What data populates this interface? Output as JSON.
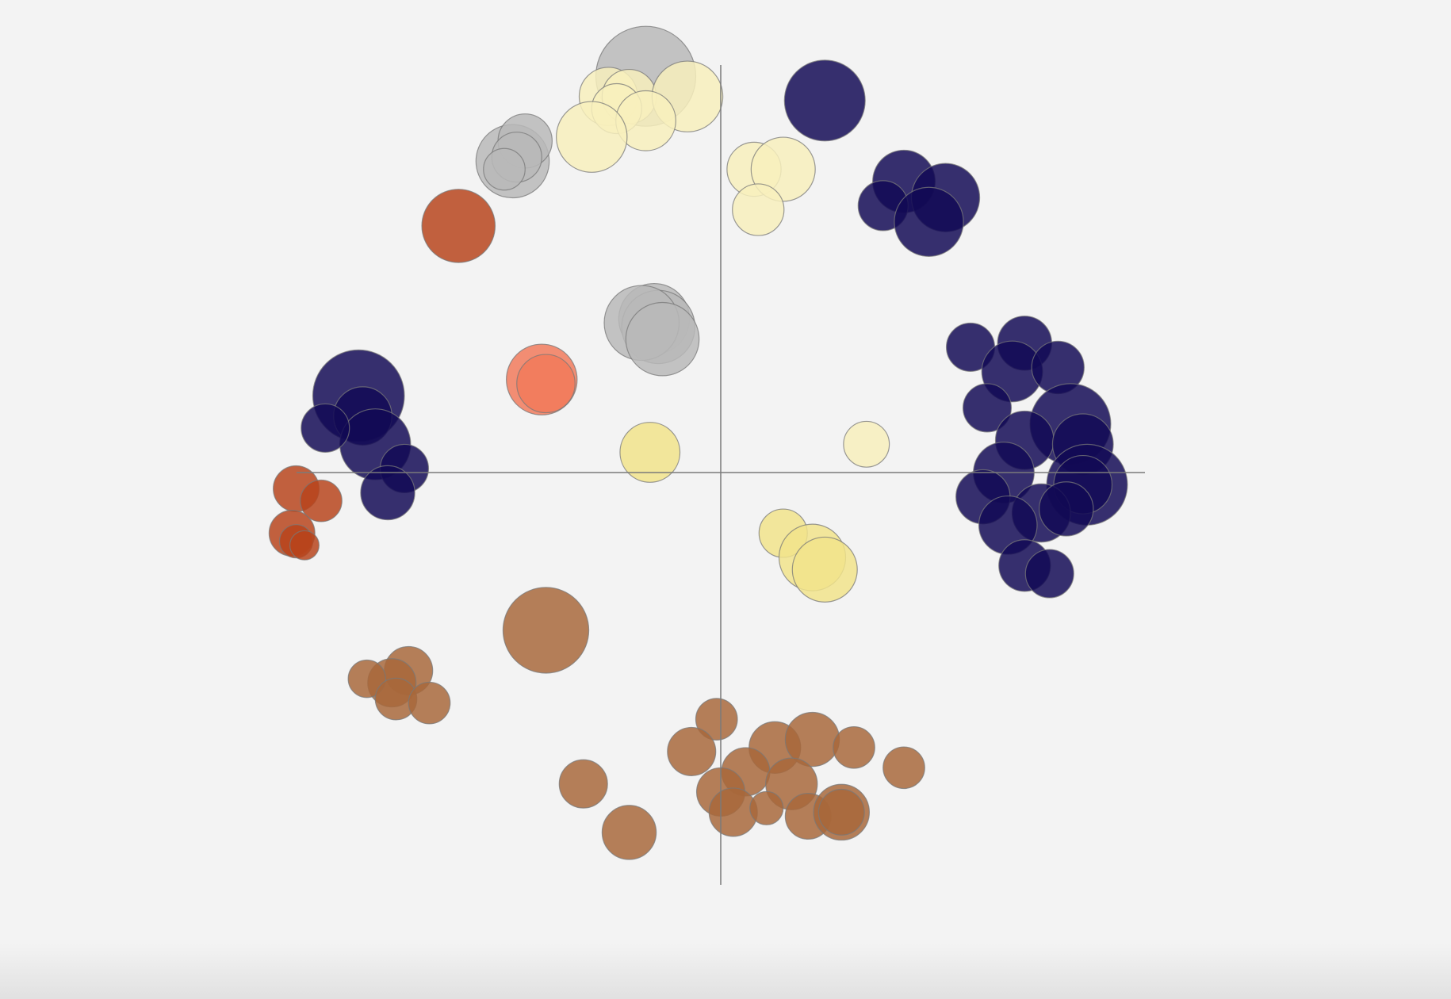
{
  "chart_data": {
    "type": "scatter",
    "subtype": "bubble",
    "title": "",
    "xlabel": "",
    "ylabel": "",
    "x_range": [
      -1,
      1
    ],
    "y_range": [
      -1,
      1
    ],
    "origin_axes": true,
    "grid": false,
    "tick_labels": "none",
    "colors": {
      "navy": "#120a55",
      "cream": "#f8f0bc",
      "yellow": "#f2e38a",
      "gray": "#b9b9b9",
      "rust": "#b8441c",
      "coral": "#f27a5a",
      "brown": "#a8683a"
    },
    "groups": [
      {
        "color": "gray",
        "points": [
          {
            "x": -0.18,
            "y": 0.98,
            "r": 0.12
          },
          {
            "x": -0.16,
            "y": 0.38,
            "r": 0.085
          },
          {
            "x": -0.15,
            "y": 0.36,
            "r": 0.088
          },
          {
            "x": -0.19,
            "y": 0.37,
            "r": 0.09
          },
          {
            "x": -0.14,
            "y": 0.33,
            "r": 0.088
          },
          {
            "x": -0.5,
            "y": 0.77,
            "r": 0.088
          },
          {
            "x": -0.47,
            "y": 0.82,
            "r": 0.065
          },
          {
            "x": -0.49,
            "y": 0.78,
            "r": 0.06
          },
          {
            "x": -0.52,
            "y": 0.75,
            "r": 0.05
          }
        ]
      },
      {
        "color": "cream",
        "points": [
          {
            "x": -0.27,
            "y": 0.93,
            "r": 0.07
          },
          {
            "x": -0.22,
            "y": 0.93,
            "r": 0.065
          },
          {
            "x": -0.25,
            "y": 0.9,
            "r": 0.06
          },
          {
            "x": -0.08,
            "y": 0.93,
            "r": 0.085
          },
          {
            "x": -0.18,
            "y": 0.87,
            "r": 0.072
          },
          {
            "x": -0.31,
            "y": 0.83,
            "r": 0.085
          },
          {
            "x": 0.08,
            "y": 0.75,
            "r": 0.065
          },
          {
            "x": 0.15,
            "y": 0.75,
            "r": 0.077
          },
          {
            "x": 0.09,
            "y": 0.65,
            "r": 0.062
          },
          {
            "x": 0.35,
            "y": 0.07,
            "r": 0.055
          }
        ]
      },
      {
        "color": "yellow",
        "points": [
          {
            "x": -0.17,
            "y": 0.05,
            "r": 0.072
          },
          {
            "x": 0.15,
            "y": -0.15,
            "r": 0.058
          },
          {
            "x": 0.22,
            "y": -0.21,
            "r": 0.08
          },
          {
            "x": 0.25,
            "y": -0.24,
            "r": 0.078
          }
        ]
      },
      {
        "color": "navy",
        "points": [
          {
            "x": 0.25,
            "y": 0.92,
            "r": 0.097
          },
          {
            "x": 0.44,
            "y": 0.72,
            "r": 0.075
          },
          {
            "x": 0.54,
            "y": 0.68,
            "r": 0.082
          },
          {
            "x": 0.39,
            "y": 0.66,
            "r": 0.06
          },
          {
            "x": 0.5,
            "y": 0.62,
            "r": 0.083
          },
          {
            "x": -0.87,
            "y": 0.19,
            "r": 0.11
          },
          {
            "x": -0.86,
            "y": 0.14,
            "r": 0.07
          },
          {
            "x": -0.83,
            "y": 0.07,
            "r": 0.085
          },
          {
            "x": -0.95,
            "y": 0.11,
            "r": 0.058
          },
          {
            "x": -0.76,
            "y": 0.01,
            "r": 0.058
          },
          {
            "x": -0.8,
            "y": -0.05,
            "r": 0.065
          },
          {
            "x": 0.6,
            "y": 0.31,
            "r": 0.058
          },
          {
            "x": 0.73,
            "y": 0.32,
            "r": 0.065
          },
          {
            "x": 0.7,
            "y": 0.25,
            "r": 0.073
          },
          {
            "x": 0.81,
            "y": 0.26,
            "r": 0.063
          },
          {
            "x": 0.64,
            "y": 0.16,
            "r": 0.058
          },
          {
            "x": 0.84,
            "y": 0.12,
            "r": 0.097
          },
          {
            "x": 0.73,
            "y": 0.08,
            "r": 0.07
          },
          {
            "x": 0.87,
            "y": 0.07,
            "r": 0.073
          },
          {
            "x": 0.68,
            "y": 0.0,
            "r": 0.073
          },
          {
            "x": 0.88,
            "y": -0.03,
            "r": 0.097
          },
          {
            "x": 0.87,
            "y": -0.03,
            "r": 0.07
          },
          {
            "x": 0.63,
            "y": -0.06,
            "r": 0.065
          },
          {
            "x": 0.77,
            "y": -0.1,
            "r": 0.07
          },
          {
            "x": 0.83,
            "y": -0.09,
            "r": 0.065
          },
          {
            "x": 0.69,
            "y": -0.13,
            "r": 0.07
          },
          {
            "x": 0.73,
            "y": -0.23,
            "r": 0.062
          },
          {
            "x": 0.79,
            "y": -0.25,
            "r": 0.058
          }
        ]
      },
      {
        "color": "rust",
        "points": [
          {
            "x": -0.63,
            "y": 0.61,
            "r": 0.088
          },
          {
            "x": -1.02,
            "y": -0.04,
            "r": 0.055
          },
          {
            "x": -0.96,
            "y": -0.07,
            "r": 0.05
          },
          {
            "x": -1.03,
            "y": -0.15,
            "r": 0.055
          },
          {
            "x": -1.02,
            "y": -0.17,
            "r": 0.04
          },
          {
            "x": -1.0,
            "y": -0.18,
            "r": 0.035
          }
        ]
      },
      {
        "color": "coral",
        "points": [
          {
            "x": -0.43,
            "y": 0.23,
            "r": 0.085
          },
          {
            "x": -0.42,
            "y": 0.22,
            "r": 0.07
          }
        ]
      },
      {
        "color": "brown",
        "points": [
          {
            "x": -0.42,
            "y": -0.39,
            "r": 0.103
          },
          {
            "x": -0.75,
            "y": -0.49,
            "r": 0.058
          },
          {
            "x": -0.79,
            "y": -0.52,
            "r": 0.058
          },
          {
            "x": -0.85,
            "y": -0.51,
            "r": 0.045
          },
          {
            "x": -0.78,
            "y": -0.56,
            "r": 0.05
          },
          {
            "x": -0.7,
            "y": -0.57,
            "r": 0.05
          },
          {
            "x": -0.01,
            "y": -0.61,
            "r": 0.05
          },
          {
            "x": -0.07,
            "y": -0.69,
            "r": 0.058
          },
          {
            "x": 0.13,
            "y": -0.68,
            "r": 0.062
          },
          {
            "x": 0.22,
            "y": -0.66,
            "r": 0.065
          },
          {
            "x": 0.32,
            "y": -0.68,
            "r": 0.05
          },
          {
            "x": 0.06,
            "y": -0.74,
            "r": 0.058
          },
          {
            "x": 0.17,
            "y": -0.77,
            "r": 0.062
          },
          {
            "x": 0.0,
            "y": -0.79,
            "r": 0.058
          },
          {
            "x": 0.03,
            "y": -0.84,
            "r": 0.058
          },
          {
            "x": 0.11,
            "y": -0.83,
            "r": 0.04
          },
          {
            "x": 0.21,
            "y": -0.85,
            "r": 0.055
          },
          {
            "x": 0.29,
            "y": -0.84,
            "r": 0.067
          },
          {
            "x": 0.29,
            "y": -0.84,
            "r": 0.055
          },
          {
            "x": 0.44,
            "y": -0.73,
            "r": 0.05
          },
          {
            "x": -0.33,
            "y": -0.77,
            "r": 0.058
          },
          {
            "x": -0.22,
            "y": -0.89,
            "r": 0.065
          }
        ]
      }
    ]
  }
}
